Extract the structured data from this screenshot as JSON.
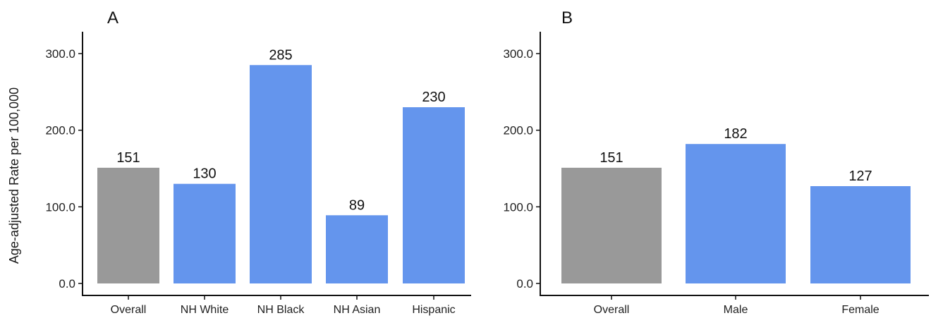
{
  "chart_data": [
    {
      "type": "bar",
      "panel_label": "A",
      "ylabel": "Age-adjusted Rate per 100,000",
      "ylim": [
        0,
        300
      ],
      "yticks": [
        "0.0",
        "100.0",
        "200.0",
        "300.0"
      ],
      "categories": [
        "Overall",
        "NH White",
        "NH Black",
        "NH Asian",
        "Hispanic"
      ],
      "values": [
        151,
        130,
        285,
        89,
        230
      ],
      "value_labels": [
        "151",
        "130",
        "285",
        "89",
        "230"
      ],
      "bar_colors": [
        "#999999",
        "#6495ED",
        "#6495ED",
        "#6495ED",
        "#6495ED"
      ],
      "grid": false
    },
    {
      "type": "bar",
      "panel_label": "B",
      "ylabel": "",
      "ylim": [
        0,
        300
      ],
      "yticks": [
        "0.0",
        "100.0",
        "200.0",
        "300.0"
      ],
      "categories": [
        "Overall",
        "Male",
        "Female"
      ],
      "values": [
        151,
        182,
        127
      ],
      "value_labels": [
        "151",
        "182",
        "127"
      ],
      "bar_colors": [
        "#999999",
        "#6495ED",
        "#6495ED"
      ],
      "grid": false
    }
  ]
}
